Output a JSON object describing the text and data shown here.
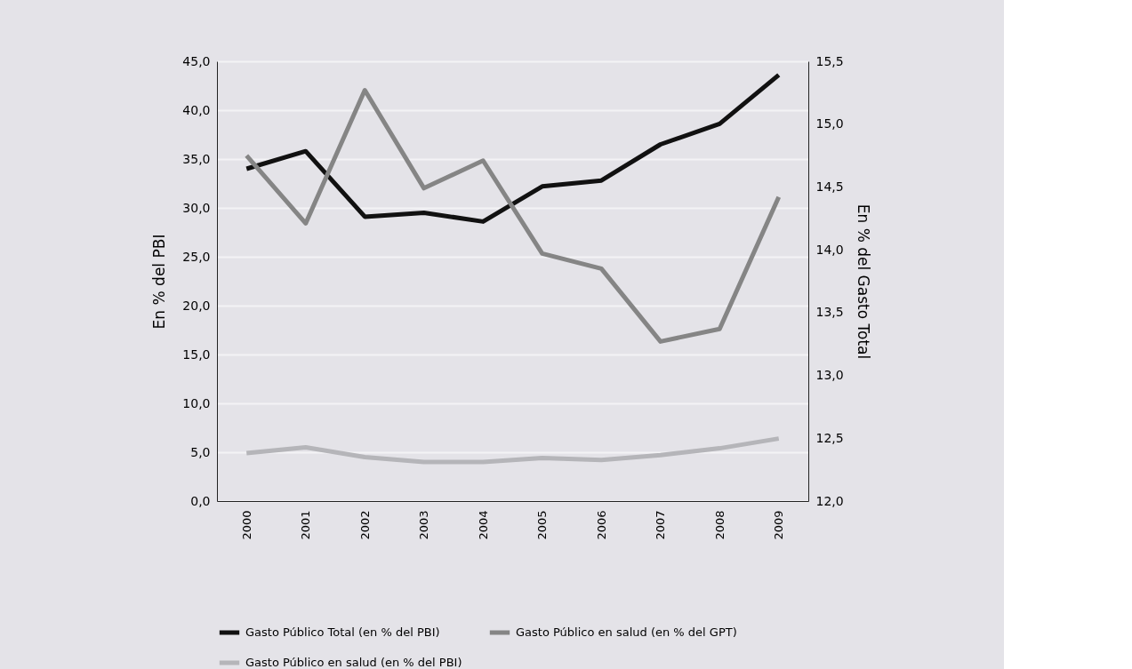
{
  "chart_data": {
    "type": "line",
    "categories": [
      "2000",
      "2001",
      "2002",
      "2003",
      "2004",
      "2005",
      "2006",
      "2007",
      "2008",
      "2009"
    ],
    "ylabel": "En % del PBI",
    "y2label": "En % del Gasto Total",
    "ylim": [
      0,
      45
    ],
    "yticks": [
      {
        "value": 0,
        "label": "0,0"
      },
      {
        "value": 5,
        "label": "5,0"
      },
      {
        "value": 10,
        "label": "10,0"
      },
      {
        "value": 15,
        "label": "15,0"
      },
      {
        "value": 20,
        "label": "20,0"
      },
      {
        "value": 25,
        "label": "25,0"
      },
      {
        "value": 30,
        "label": "30,0"
      },
      {
        "value": 35,
        "label": "35,0"
      },
      {
        "value": 40,
        "label": "40,0"
      },
      {
        "value": 45,
        "label": "45,0"
      }
    ],
    "y2lim": [
      12,
      15.5
    ],
    "y2ticks": [
      {
        "value": 12,
        "label": "12,0"
      },
      {
        "value": 12.5,
        "label": "12,5"
      },
      {
        "value": 13,
        "label": "13,0"
      },
      {
        "value": 13.5,
        "label": "13,5"
      },
      {
        "value": 14,
        "label": "14,0"
      },
      {
        "value": 14.5,
        "label": "14,5"
      },
      {
        "value": 15,
        "label": "15,0"
      },
      {
        "value": 15.5,
        "label": "15,5"
      }
    ],
    "series": [
      {
        "name": "Gasto Público Total (en % del PBI)",
        "color": "#111111",
        "values": [
          34.0,
          35.8,
          29.1,
          29.5,
          28.6,
          32.2,
          32.8,
          36.5,
          38.6,
          43.6
        ]
      },
      {
        "name": "Gasto Público en salud (en % del GPT)",
        "color": "#858585",
        "axis": "y2",
        "values": [
          14.75,
          14.21,
          15.27,
          14.49,
          14.71,
          13.97,
          13.85,
          13.27,
          13.37,
          14.42
        ]
      },
      {
        "name": "Gasto Público en salud (en % del PBI)",
        "color": "#b5b5b9",
        "values": [
          4.9,
          5.5,
          4.5,
          4.0,
          4.0,
          4.4,
          4.2,
          4.7,
          5.4,
          6.4
        ]
      }
    ],
    "grid": "y",
    "legend": "bottom",
    "marker": "none",
    "line_style": "solid"
  }
}
